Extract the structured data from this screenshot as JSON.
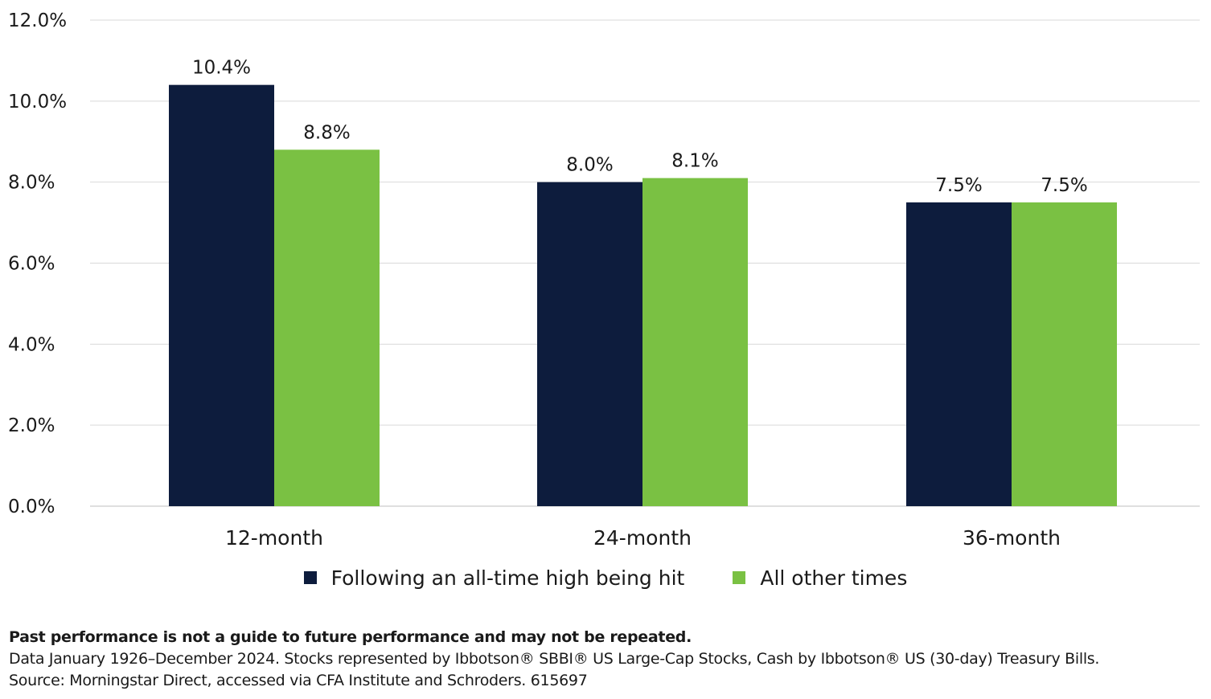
{
  "chart_data": {
    "type": "bar",
    "categories": [
      "12-month",
      "24-month",
      "36-month"
    ],
    "series": [
      {
        "name": "Following an all-time high being hit",
        "values": [
          10.4,
          8.0,
          7.5
        ],
        "labels": [
          "10.4%",
          "8.0%",
          "7.5%"
        ],
        "color": "#0d1c3d"
      },
      {
        "name": "All other times",
        "values": [
          8.8,
          8.1,
          7.5
        ],
        "labels": [
          "8.8%",
          "8.1%",
          "7.5%"
        ],
        "color": "#7ac143"
      }
    ],
    "ylim": [
      0,
      12
    ],
    "yticks": [
      0,
      2,
      4,
      6,
      8,
      10,
      12
    ],
    "ytick_labels": [
      "0.0%",
      "2.0%",
      "4.0%",
      "6.0%",
      "8.0%",
      "10.0%",
      "12.0%"
    ],
    "grid": true,
    "legend_position": "bottom"
  },
  "notes": {
    "disclaimer": "Past performance is not a guide to future performance and may not be repeated.",
    "data_line": "Data January 1926–December 2024. Stocks represented by Ibbotson® SBBI® US Large-Cap Stocks, Cash by Ibbotson® US (30-day) Treasury Bills.",
    "source_line": "Source: Morningstar Direct, accessed via CFA Institute and Schroders. 615697"
  }
}
